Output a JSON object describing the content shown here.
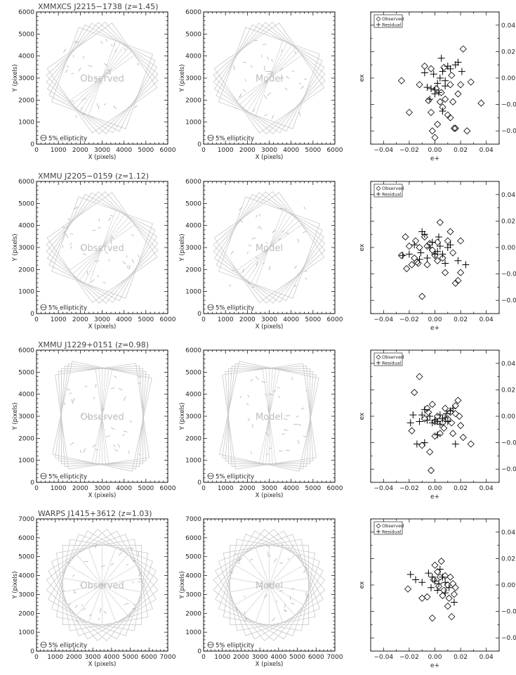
{
  "figure": {
    "rows": [
      {
        "title": "XMMXCS J2215−1738 (z=1.45)",
        "xmax": 6000,
        "ymax": 6000,
        "xticks": [
          0,
          1000,
          2000,
          3000,
          4000,
          5000,
          6000
        ],
        "yticks": [
          0,
          1000,
          2000,
          3000,
          4000,
          5000,
          6000
        ],
        "left_label": "Observed",
        "mid_label": "Model",
        "ellipticity_label": "5% ellipticity",
        "xlabel": "X (pixels)",
        "ylabel": "Y (pixels)"
      },
      {
        "title": "XMMU J2205−0159 (z=1.12)",
        "xmax": 6000,
        "ymax": 6000,
        "xticks": [
          0,
          1000,
          2000,
          3000,
          4000,
          5000,
          6000
        ],
        "yticks": [
          0,
          1000,
          2000,
          3000,
          4000,
          5000,
          6000
        ],
        "left_label": "Observed",
        "mid_label": "Model",
        "ellipticity_label": "5% ellipticity",
        "xlabel": "X (pixels)",
        "ylabel": "Y (pixels)"
      },
      {
        "title": "XMMU J1229+0151 (z=0.98)",
        "xmax": 6000,
        "ymax": 6000,
        "xticks": [
          0,
          1000,
          2000,
          3000,
          4000,
          5000,
          6000
        ],
        "yticks": [
          0,
          1000,
          2000,
          3000,
          4000,
          5000,
          6000
        ],
        "left_label": "Observed",
        "mid_label": "Model",
        "ellipticity_label": "5% ellipticity",
        "xlabel": "X (pixels)",
        "ylabel": "Y (pixels)"
      },
      {
        "title": "WARPS J1415+3612 (z=1.03)",
        "xmax": 7000,
        "ymax": 7000,
        "xticks": [
          0,
          1000,
          2000,
          3000,
          4000,
          5000,
          6000,
          7000
        ],
        "yticks": [
          0,
          1000,
          2000,
          3000,
          4000,
          5000,
          6000,
          7000
        ],
        "left_label": "Observed",
        "mid_label": "Model",
        "ellipticity_label": "5% ellipticity",
        "xlabel": "X (pixels)",
        "ylabel": "Y (pixels)"
      }
    ],
    "scatter_axes": {
      "xlabel": "e+",
      "ylabel": "ex",
      "ticks": [
        "−0.04",
        "−0.02",
        "0.00",
        "0.02",
        "0.04"
      ],
      "legend": [
        "Observed",
        "Residual"
      ]
    }
  },
  "chart_data": [
    {
      "type": "scatter",
      "panel": "XMMXCS J2215−1738 (z=1.45) ellipticity",
      "xlabel": "e+",
      "ylabel": "ex",
      "xlim": [
        -0.05,
        0.05
      ],
      "ylim": [
        -0.05,
        0.05
      ],
      "legend_position": "top-left",
      "series": [
        {
          "name": "Observed",
          "marker": "diamond",
          "points": [
            [
              -0.026,
              -0.002
            ],
            [
              -0.02,
              -0.026
            ],
            [
              -0.012,
              -0.005
            ],
            [
              -0.008,
              0.009
            ],
            [
              -0.005,
              -0.017
            ],
            [
              -0.003,
              -0.026
            ],
            [
              -0.002,
              -0.04
            ],
            [
              0.0,
              -0.045
            ],
            [
              0.002,
              -0.035
            ],
            [
              0.004,
              -0.018
            ],
            [
              0.005,
              -0.011
            ],
            [
              0.006,
              -0.022
            ],
            [
              0.008,
              -0.016
            ],
            [
              0.01,
              -0.028
            ],
            [
              0.012,
              -0.03
            ],
            [
              0.013,
              0.002
            ],
            [
              0.014,
              -0.018
            ],
            [
              0.016,
              -0.038
            ],
            [
              0.018,
              -0.012
            ],
            [
              0.022,
              0.022
            ],
            [
              0.025,
              -0.04
            ],
            [
              0.028,
              -0.003
            ],
            [
              0.036,
              -0.019
            ],
            [
              0.001,
              -0.008
            ],
            [
              -0.003,
              0.007
            ],
            [
              0.007,
              0.008
            ],
            [
              0.012,
              -0.005
            ],
            [
              0.015,
              -0.038
            ],
            [
              0.02,
              -0.005
            ]
          ]
        },
        {
          "name": "Residual",
          "marker": "plus",
          "points": [
            [
              -0.008,
              0.004
            ],
            [
              -0.006,
              -0.007
            ],
            [
              -0.003,
              -0.008
            ],
            [
              -0.001,
              0.003
            ],
            [
              0.0,
              -0.009
            ],
            [
              0.002,
              -0.004
            ],
            [
              0.004,
              0.0
            ],
            [
              0.005,
              0.015
            ],
            [
              0.006,
              0.005
            ],
            [
              0.008,
              -0.006
            ],
            [
              0.01,
              0.009
            ],
            [
              0.012,
              0.007
            ],
            [
              0.016,
              0.01
            ],
            [
              0.018,
              0.012
            ],
            [
              0.021,
              0.005
            ],
            [
              0.006,
              -0.025
            ],
            [
              0.003,
              -0.011
            ],
            [
              0.008,
              -0.002
            ],
            [
              -0.004,
              -0.016
            ],
            [
              0.0,
              -0.012
            ]
          ]
        }
      ]
    },
    {
      "type": "scatter",
      "panel": "XMMU J2205−0159 (z=1.12) ellipticity",
      "xlabel": "e+",
      "ylabel": "ex",
      "xlim": [
        -0.05,
        0.05
      ],
      "ylim": [
        -0.05,
        0.05
      ],
      "legend_position": "top-left",
      "series": [
        {
          "name": "Observed",
          "marker": "diamond",
          "points": [
            [
              -0.026,
              -0.006
            ],
            [
              -0.023,
              0.008
            ],
            [
              -0.022,
              -0.016
            ],
            [
              -0.02,
              0.001
            ],
            [
              -0.018,
              -0.013
            ],
            [
              -0.016,
              -0.008
            ],
            [
              -0.015,
              0.005
            ],
            [
              -0.013,
              -0.012
            ],
            [
              -0.012,
              0.0
            ],
            [
              -0.01,
              -0.037
            ],
            [
              -0.008,
              0.008
            ],
            [
              -0.006,
              -0.013
            ],
            [
              -0.004,
              0.003
            ],
            [
              -0.002,
              -0.002
            ],
            [
              0.0,
              -0.006
            ],
            [
              0.002,
              0.004
            ],
            [
              0.004,
              0.019
            ],
            [
              0.006,
              -0.008
            ],
            [
              0.008,
              -0.019
            ],
            [
              0.01,
              0.005
            ],
            [
              0.012,
              0.012
            ],
            [
              0.014,
              -0.004
            ],
            [
              0.016,
              -0.027
            ],
            [
              0.018,
              -0.025
            ],
            [
              0.02,
              -0.019
            ],
            [
              0.02,
              0.005
            ],
            [
              -0.006,
              0.001
            ],
            [
              0.002,
              -0.01
            ],
            [
              -0.014,
              -0.011
            ]
          ]
        },
        {
          "name": "Residual",
          "marker": "plus",
          "points": [
            [
              -0.025,
              -0.006
            ],
            [
              -0.02,
              -0.005
            ],
            [
              -0.016,
              0.002
            ],
            [
              -0.012,
              -0.009
            ],
            [
              -0.01,
              0.012
            ],
            [
              -0.008,
              0.01
            ],
            [
              -0.006,
              -0.008
            ],
            [
              -0.004,
              0.0
            ],
            [
              -0.002,
              0.004
            ],
            [
              0.0,
              -0.005
            ],
            [
              0.002,
              -0.003
            ],
            [
              0.004,
              0.001
            ],
            [
              0.006,
              -0.005
            ],
            [
              0.008,
              -0.012
            ],
            [
              0.01,
              0.0
            ],
            [
              0.012,
              0.002
            ],
            [
              0.018,
              -0.01
            ],
            [
              0.024,
              -0.013
            ],
            [
              0.003,
              0.008
            ],
            [
              -0.011,
              -0.004
            ]
          ]
        }
      ]
    },
    {
      "type": "scatter",
      "panel": "XMMU J1229+0151 (z=0.98) ellipticity",
      "xlabel": "e+",
      "ylabel": "ex",
      "xlim": [
        -0.05,
        0.05
      ],
      "ylim": [
        -0.05,
        0.05
      ],
      "legend_position": "top-left",
      "series": [
        {
          "name": "Observed",
          "marker": "diamond",
          "points": [
            [
              -0.012,
              0.03
            ],
            [
              -0.016,
              0.018
            ],
            [
              -0.018,
              -0.011
            ],
            [
              -0.01,
              -0.022
            ],
            [
              -0.008,
              -0.002
            ],
            [
              -0.006,
              0.006
            ],
            [
              -0.004,
              -0.027
            ],
            [
              -0.003,
              -0.041
            ],
            [
              -0.002,
              0.009
            ],
            [
              0.0,
              -0.004
            ],
            [
              0.002,
              0.0
            ],
            [
              0.004,
              -0.013
            ],
            [
              0.006,
              -0.005
            ],
            [
              0.008,
              0.006
            ],
            [
              0.01,
              -0.002
            ],
            [
              0.012,
              0.003
            ],
            [
              0.014,
              -0.013
            ],
            [
              0.016,
              0.008
            ],
            [
              0.018,
              0.012
            ],
            [
              0.02,
              -0.007
            ],
            [
              0.022,
              -0.016
            ],
            [
              0.028,
              -0.021
            ],
            [
              0.016,
              0.002
            ],
            [
              0.019,
              0.0
            ],
            [
              -0.005,
              0.003
            ],
            [
              0.007,
              -0.009
            ],
            [
              0.013,
              -0.005
            ],
            [
              0.0,
              -0.015
            ]
          ]
        },
        {
          "name": "Residual",
          "marker": "plus",
          "points": [
            [
              -0.019,
              -0.005
            ],
            [
              -0.014,
              -0.021
            ],
            [
              -0.012,
              -0.004
            ],
            [
              -0.01,
              0.001
            ],
            [
              -0.008,
              -0.02
            ],
            [
              -0.006,
              -0.003
            ],
            [
              -0.004,
              0.0
            ],
            [
              -0.002,
              -0.005
            ],
            [
              0.0,
              -0.003
            ],
            [
              0.002,
              -0.004
            ],
            [
              0.004,
              0.001
            ],
            [
              0.006,
              -0.002
            ],
            [
              0.008,
              -0.001
            ],
            [
              0.01,
              -0.004
            ],
            [
              0.012,
              0.004
            ],
            [
              0.014,
              0.006
            ],
            [
              0.016,
              -0.021
            ],
            [
              -0.017,
              0.001
            ],
            [
              0.002,
              -0.014
            ],
            [
              -0.008,
              0.005
            ],
            [
              0.004,
              -0.006
            ],
            [
              0.009,
              0.002
            ]
          ]
        }
      ]
    },
    {
      "type": "scatter",
      "panel": "WARPS J1415+3612 (z=1.03) ellipticity",
      "xlabel": "e+",
      "ylabel": "ex",
      "xlim": [
        -0.05,
        0.05
      ],
      "ylim": [
        -0.05,
        0.05
      ],
      "legend_position": "top-left",
      "series": [
        {
          "name": "Observed",
          "marker": "diamond",
          "points": [
            [
              -0.021,
              -0.003
            ],
            [
              -0.01,
              -0.01
            ],
            [
              -0.006,
              -0.009
            ],
            [
              -0.002,
              -0.025
            ],
            [
              0.0,
              0.015
            ],
            [
              0.002,
              0.01
            ],
            [
              0.004,
              0.006
            ],
            [
              0.005,
              0.018
            ],
            [
              0.006,
              -0.008
            ],
            [
              0.007,
              -0.004
            ],
            [
              0.008,
              0.007
            ],
            [
              0.01,
              -0.016
            ],
            [
              0.012,
              0.006
            ],
            [
              0.013,
              -0.024
            ],
            [
              0.014,
              0.001
            ],
            [
              0.015,
              -0.007
            ],
            [
              0.016,
              -0.002
            ],
            [
              0.01,
              0.0
            ],
            [
              -0.001,
              0.004
            ],
            [
              0.003,
              -0.001
            ],
            [
              0.011,
              -0.01
            ]
          ]
        },
        {
          "name": "Residual",
          "marker": "plus",
          "points": [
            [
              -0.019,
              0.008
            ],
            [
              -0.015,
              0.004
            ],
            [
              -0.01,
              0.002
            ],
            [
              -0.005,
              0.009
            ],
            [
              -0.003,
              -0.002
            ],
            [
              0.0,
              0.003
            ],
            [
              0.002,
              -0.004
            ],
            [
              0.004,
              0.012
            ],
            [
              0.006,
              0.006
            ],
            [
              0.008,
              0.002
            ],
            [
              0.011,
              -0.002
            ],
            [
              0.015,
              -0.013
            ],
            [
              0.003,
              0.001
            ],
            [
              -0.002,
              0.006
            ],
            [
              0.008,
              -0.006
            ]
          ]
        }
      ]
    }
  ]
}
